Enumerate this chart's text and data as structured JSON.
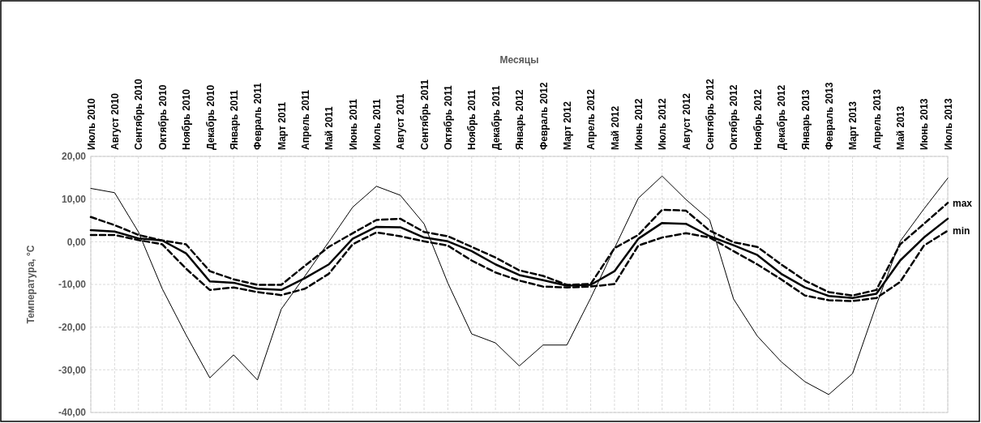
{
  "chart_data": {
    "type": "line",
    "xlabel": "Месяцы",
    "ylabel": "Температура, °C",
    "categories": [
      "Июль 2010",
      "Август 2010",
      "Сентябрь 2010",
      "Октябрь 2010",
      "Ноябрь 2010",
      "Декабрь 2010",
      "Январь 2011",
      "Февраль 2011",
      "Март 2011",
      "Апрель 2011",
      "Май 2011",
      "Июнь 2011",
      "Июль 2011",
      "Август 2011",
      "Сентябрь 2011",
      "Октябрь 2011",
      "Ноябрь 2011",
      "Декабрь 2011",
      "Январь 2012",
      "Февраль 2012",
      "Март 2012",
      "Апрель 2012",
      "Май 2012",
      "Июнь 2012",
      "Июль 2012",
      "Август 2012",
      "Сентябрь 2012",
      "Октябрь 2012",
      "Ноябрь 2012",
      "Декабрь 2012",
      "Январь 2013",
      "Февраль 2013",
      "Март 2013",
      "Апрель 2013",
      "Май 2013",
      "Июнь 2013",
      "Июль 2013"
    ],
    "series": [
      {
        "color": "#000000",
        "line_style": "solid",
        "values": [
          12.5,
          11.5,
          2.3,
          -11.0,
          -21.8,
          -31.9,
          -26.5,
          -32.4,
          -15.8,
          -8.0,
          0.0,
          8.1,
          13.0,
          10.9,
          4.2,
          -9.7,
          -21.6,
          -23.7,
          -29.1,
          -24.2,
          -24.2,
          -13.2,
          -1.5,
          10.2,
          15.4,
          9.9,
          5.1,
          -13.4,
          -22.1,
          -28.1,
          -32.8,
          -35.8,
          -30.9,
          -14.8,
          0.1,
          7.7,
          14.9
        ]
      },
      {
        "color": "#000000",
        "line_style": "solid",
        "values": [
          2.7,
          2.4,
          0.8,
          0.3,
          -2.7,
          -9.3,
          -9.6,
          -11.0,
          -11.3,
          -8.5,
          -5.3,
          0.7,
          3.5,
          3.4,
          1.0,
          0.1,
          -2.2,
          -5.3,
          -7.8,
          -9.0,
          -10.3,
          -10.1,
          -6.9,
          0.7,
          4.4,
          4.2,
          1.3,
          -0.8,
          -3.1,
          -7.5,
          -10.7,
          -12.7,
          -13.2,
          -12.2,
          -4.4,
          1.0,
          5.4
        ]
      },
      {
        "name": "max",
        "color": "#000000",
        "line_style": "dashed",
        "values": [
          5.8,
          3.9,
          1.6,
          0.3,
          -0.6,
          -6.9,
          -8.8,
          -10.1,
          -10.1,
          -5.6,
          -1.2,
          2.0,
          5.1,
          5.4,
          2.3,
          1.3,
          -1.2,
          -3.7,
          -6.7,
          -8.0,
          -10.1,
          -9.9,
          -1.5,
          1.6,
          7.5,
          7.3,
          2.6,
          -0.1,
          -1.2,
          -5.3,
          -9.1,
          -11.8,
          -12.6,
          -11.3,
          -0.6,
          4.2,
          9.1
        ]
      },
      {
        "name": "min",
        "color": "#000000",
        "line_style": "dashed",
        "values": [
          1.6,
          1.6,
          0.4,
          -0.6,
          -6.3,
          -11.3,
          -10.7,
          -11.8,
          -12.5,
          -11.0,
          -7.5,
          -0.6,
          2.2,
          1.3,
          0.1,
          -0.9,
          -4.4,
          -7.2,
          -9.1,
          -10.5,
          -10.7,
          -10.5,
          -9.9,
          -0.9,
          1.0,
          2.0,
          1.0,
          -2.2,
          -5.3,
          -8.8,
          -12.6,
          -13.7,
          -13.9,
          -13.2,
          -9.4,
          -0.9,
          2.6
        ]
      }
    ],
    "ylim": [
      -40,
      20
    ],
    "yticks": [
      {
        "value": -40,
        "label": "-40,00"
      },
      {
        "value": -30,
        "label": "-30,00"
      },
      {
        "value": -20,
        "label": "-20,00"
      },
      {
        "value": -10,
        "label": "-10,00"
      },
      {
        "value": 0,
        "label": "0,00"
      },
      {
        "value": 10,
        "label": "10,00"
      },
      {
        "value": 20,
        "label": "20,00"
      }
    ],
    "grid": true
  }
}
